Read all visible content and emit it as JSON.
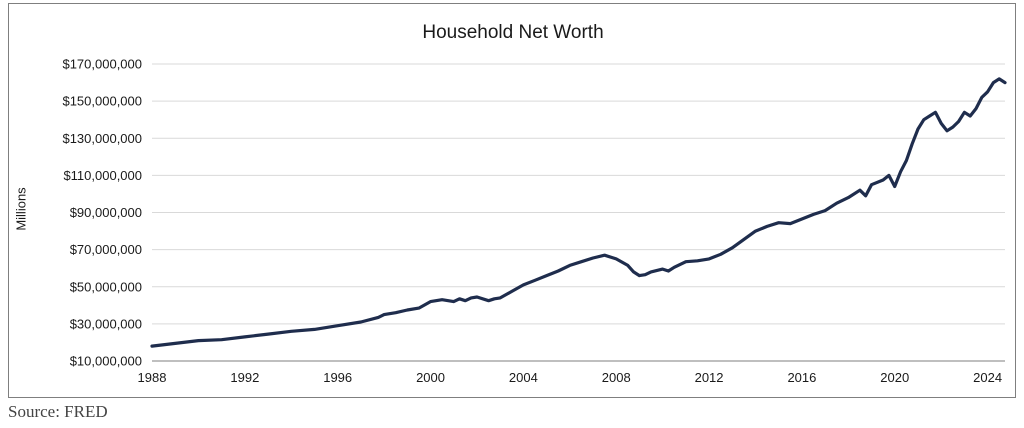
{
  "chart_data": {
    "type": "line",
    "title": "Household Net Worth",
    "xlabel": "",
    "ylabel": "Millions",
    "source": "Source: FRED",
    "xlim": [
      1988,
      2024.75
    ],
    "ylim": [
      10000000,
      170000000
    ],
    "x_ticks": [
      1988,
      1992,
      1996,
      2000,
      2004,
      2008,
      2012,
      2016,
      2020,
      2024
    ],
    "x_tick_labels": [
      "1988",
      "1992",
      "1996",
      "2000",
      "2004",
      "2008",
      "2012",
      "2016",
      "2020",
      "2024"
    ],
    "y_ticks": [
      10000000,
      30000000,
      50000000,
      70000000,
      90000000,
      110000000,
      130000000,
      150000000,
      170000000
    ],
    "y_tick_labels": [
      "$10,000,000",
      "$30,000,000",
      "$50,000,000",
      "$70,000,000",
      "$90,000,000",
      "$110,000,000",
      "$130,000,000",
      "$150,000,000",
      "$170,000,000"
    ],
    "grid": true,
    "legend": "none",
    "colors": {
      "line": "#1f2d4d",
      "grid": "#d9d9d9",
      "axis": "#7f7f7f"
    },
    "series": [
      {
        "x": [
          1988,
          1989,
          1990,
          1991,
          1992,
          1993,
          1994,
          1995,
          1996,
          1997,
          1997.75,
          1998,
          1998.5,
          1999,
          1999.5,
          2000,
          2000.5,
          2001,
          2001.25,
          2001.5,
          2001.75,
          2002,
          2002.5,
          2002.75,
          2003,
          2003.5,
          2004,
          2004.5,
          2005,
          2005.5,
          2006,
          2006.5,
          2007,
          2007.5,
          2008,
          2008.5,
          2008.75,
          2009,
          2009.25,
          2009.5,
          2010,
          2010.25,
          2010.5,
          2011,
          2011.5,
          2012,
          2012.5,
          2013,
          2013.5,
          2014,
          2014.5,
          2015,
          2015.5,
          2016,
          2016.5,
          2017,
          2017.5,
          2018,
          2018.5,
          2018.75,
          2019,
          2019.5,
          2019.75,
          2020,
          2020.25,
          2020.5,
          2020.75,
          2021,
          2021.25,
          2021.5,
          2021.75,
          2022,
          2022.25,
          2022.5,
          2022.75,
          2023,
          2023.25,
          2023.5,
          2023.75,
          2024,
          2024.25,
          2024.5,
          2024.75
        ],
        "y": [
          18000000,
          19500000,
          21000000,
          21500000,
          23000000,
          24500000,
          26000000,
          27000000,
          29000000,
          31000000,
          33500000,
          35000000,
          36000000,
          37500000,
          38500000,
          42000000,
          43000000,
          42000000,
          43500000,
          42500000,
          44000000,
          44500000,
          42500000,
          43500000,
          44000000,
          47500000,
          51000000,
          53500000,
          56000000,
          58500000,
          61500000,
          63500000,
          65500000,
          67000000,
          65000000,
          61500000,
          58000000,
          56000000,
          56500000,
          58000000,
          59500000,
          58500000,
          60500000,
          63500000,
          64000000,
          65000000,
          67500000,
          71000000,
          75500000,
          80000000,
          82500000,
          84500000,
          84000000,
          86500000,
          89000000,
          91000000,
          95000000,
          98000000,
          102000000,
          99000000,
          105000000,
          107500000,
          110000000,
          104000000,
          112000000,
          118000000,
          127000000,
          135000000,
          140000000,
          142000000,
          144000000,
          138000000,
          134000000,
          136000000,
          139000000,
          144000000,
          142000000,
          146000000,
          152000000,
          155000000,
          160000000,
          162000000,
          160000000
        ]
      }
    ]
  }
}
